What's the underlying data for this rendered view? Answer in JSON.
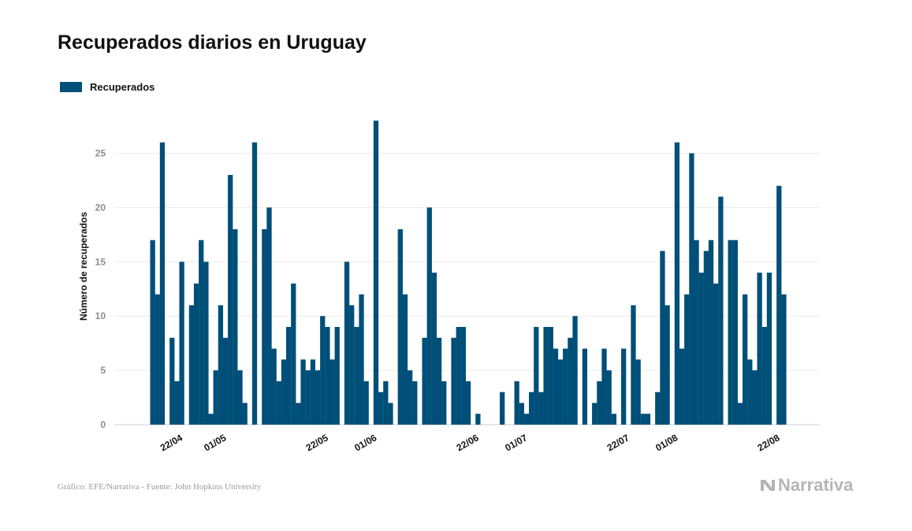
{
  "chart_data": {
    "type": "bar",
    "title": "Recuperados diarios en Uruguay",
    "xlabel": "",
    "ylabel": "Número de recuperados",
    "ylim": [
      0,
      28
    ],
    "yticks": [
      0,
      5,
      10,
      15,
      20,
      25
    ],
    "grid": true,
    "legend_position": "top-left",
    "series": [
      {
        "name": "Recuperados",
        "color": "#004f78",
        "values": [
          17,
          12,
          26,
          0,
          8,
          4,
          15,
          0,
          11,
          13,
          17,
          15,
          1,
          5,
          11,
          8,
          23,
          18,
          5,
          2,
          0,
          26,
          0,
          18,
          20,
          7,
          4,
          6,
          9,
          13,
          2,
          6,
          5,
          6,
          5,
          10,
          9,
          6,
          9,
          0,
          15,
          11,
          9,
          12,
          4,
          0,
          28,
          3,
          4,
          2,
          0,
          18,
          12,
          5,
          4,
          0,
          8,
          20,
          14,
          8,
          4,
          0,
          8,
          9,
          9,
          4,
          0,
          1,
          0,
          0,
          0,
          0,
          3,
          0,
          0,
          4,
          2,
          1,
          3,
          9,
          3,
          9,
          9,
          7,
          6,
          7,
          8,
          10,
          0,
          7,
          0,
          2,
          4,
          7,
          5,
          1,
          0,
          7,
          0,
          11,
          6,
          1,
          1,
          0,
          3,
          16,
          11,
          0,
          26,
          7,
          12,
          25,
          17,
          14,
          16,
          17,
          13,
          21,
          0,
          17,
          17,
          2,
          12,
          6,
          5,
          14,
          9,
          14,
          0,
          22,
          12
        ]
      }
    ],
    "x_tick_labels": [
      {
        "label": "22/04",
        "index": 5
      },
      {
        "label": "01/05",
        "index": 14
      },
      {
        "label": "22/05",
        "index": 35
      },
      {
        "label": "01/06",
        "index": 45
      },
      {
        "label": "22/06",
        "index": 66
      },
      {
        "label": "01/07",
        "index": 76
      },
      {
        "label": "22/07",
        "index": 97
      },
      {
        "label": "01/08",
        "index": 107
      },
      {
        "label": "22/08",
        "index": 128
      }
    ]
  },
  "footer": {
    "credit": "Gráfico: EFE/Narrativa - Fuente: John Hopkins University",
    "brand": "Narrativa"
  }
}
